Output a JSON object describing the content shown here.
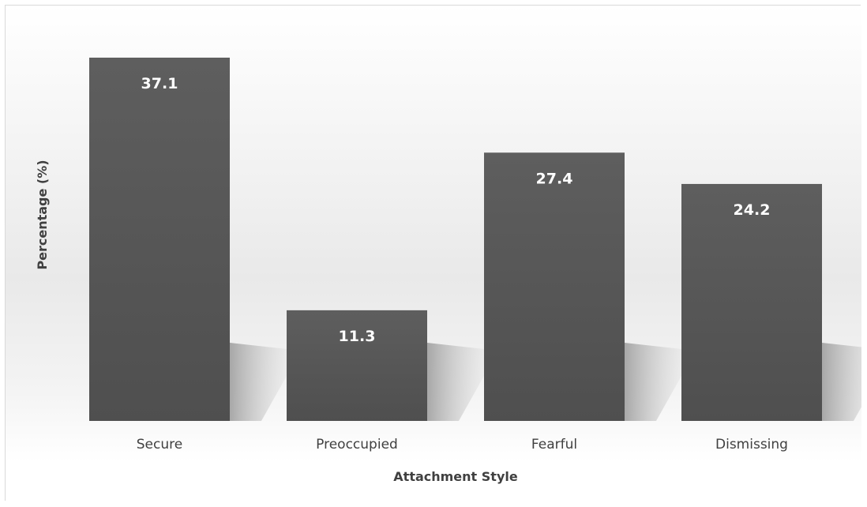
{
  "chart_data": {
    "type": "bar",
    "categories": [
      "Secure",
      "Preoccupied",
      "Fearful",
      "Dismissing"
    ],
    "values": [
      37.1,
      11.3,
      27.4,
      24.2
    ],
    "title": "",
    "xlabel": "Attachment Style",
    "ylabel": "Percentage (%)",
    "ylim": [
      0,
      37.1
    ],
    "grid": false,
    "legend": "none",
    "bar_color": "#595959",
    "label_color": "#ffffff"
  }
}
